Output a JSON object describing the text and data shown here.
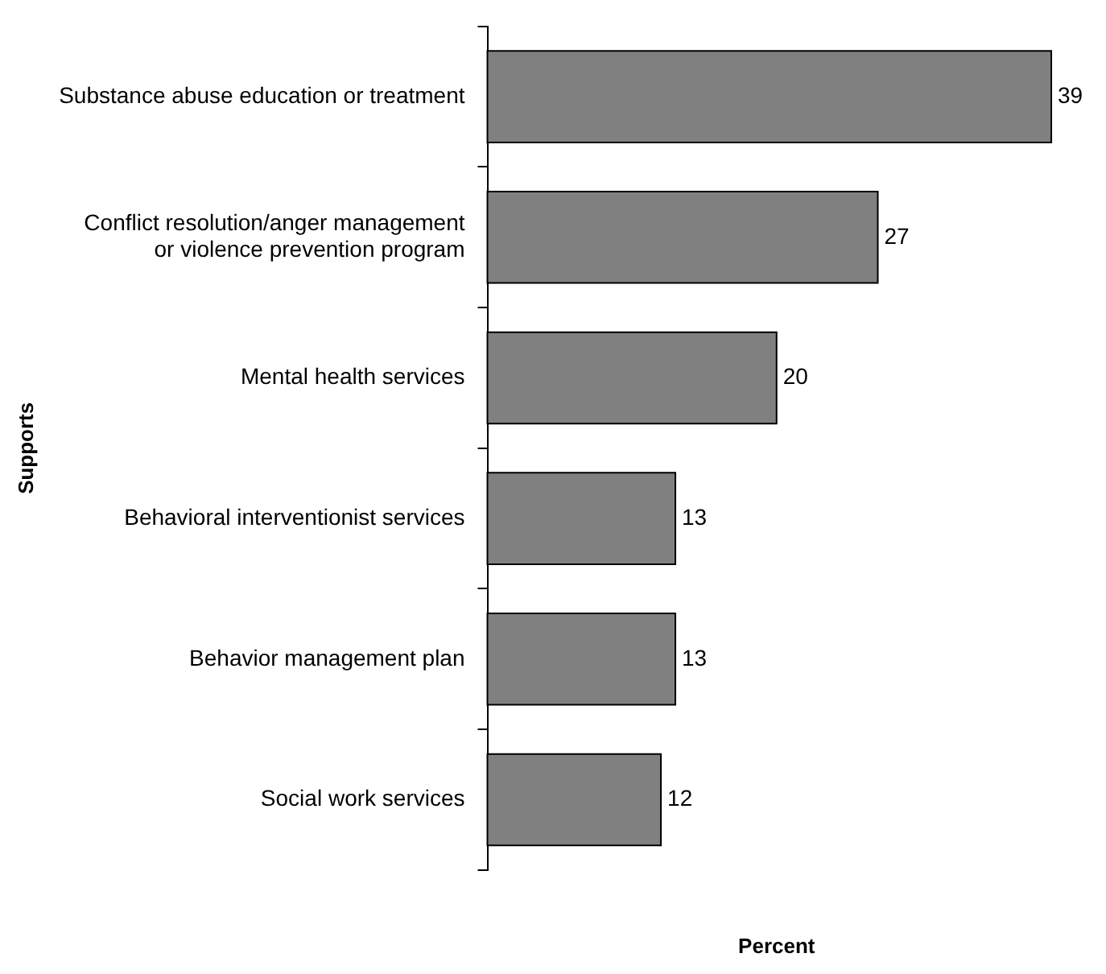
{
  "chart_data": {
    "type": "bar",
    "orientation": "horizontal",
    "ylabel": "Supports",
    "xlabel": "Percent",
    "categories": [
      "Substance abuse education or treatment",
      "Conflict resolution/anger management or violence prevention program",
      "Mental health services",
      "Behavioral interventionist services",
      "Behavior management plan",
      "Social work services"
    ],
    "values": [
      39,
      27,
      20,
      13,
      13,
      12
    ],
    "color": "#808080",
    "data_labels": true,
    "grid": false,
    "legend": false,
    "tick_labels": "y"
  }
}
